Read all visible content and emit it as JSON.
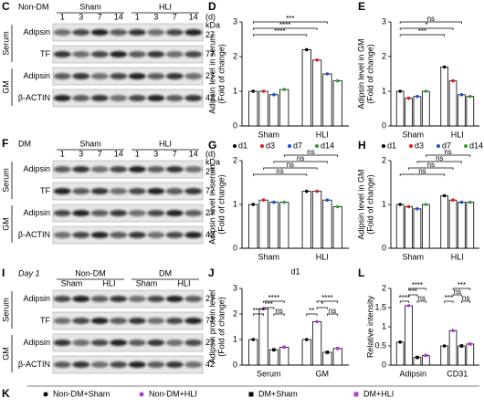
{
  "blots": [
    {
      "label": "C",
      "condition": "Non-DM",
      "groups": [
        "Sham",
        "HLI"
      ],
      "lanes": [
        "1",
        "3",
        "7",
        "14",
        "1",
        "3",
        "7",
        "14"
      ],
      "lane_unit": "(d)",
      "mw_unit": "kDa",
      "rows": [
        {
          "name": "Adipsin",
          "mw": "27"
        },
        {
          "name": "TF",
          "mw": "77"
        },
        {
          "name": "Adipsin",
          "mw": "27"
        },
        {
          "name": "β-ACTIN",
          "mw": "42"
        }
      ],
      "sections": [
        "Serum",
        "GM"
      ]
    },
    {
      "label": "F",
      "condition": "DM",
      "groups": [
        "Sham",
        "HLI"
      ],
      "lanes": [
        "1",
        "3",
        "7",
        "14",
        "1",
        "3",
        "7",
        "14"
      ],
      "lane_unit": "(d)",
      "mw_unit": "kDa",
      "rows": [
        {
          "name": "Adipsin",
          "mw": "27"
        },
        {
          "name": "TF",
          "mw": "77"
        },
        {
          "name": "Adipsin",
          "mw": "27"
        },
        {
          "name": "β-ACTIN",
          "mw": "42"
        }
      ],
      "sections": [
        "Serum",
        "GM"
      ]
    },
    {
      "label": "I",
      "day": "Day 1",
      "groups": [
        "Non-DM",
        "DM"
      ],
      "lanes": [
        "Sham",
        "HLI",
        "Sham",
        "HLI"
      ],
      "rows": [
        {
          "name": "Adipsin",
          "mw": "27"
        },
        {
          "name": "TF",
          "mw": "77"
        },
        {
          "name": "Adipsin",
          "mw": "27"
        },
        {
          "name": "β-ACTIN",
          "mw": "42"
        }
      ],
      "sections": [
        "Serum",
        "GM"
      ]
    }
  ],
  "chart_data": [
    {
      "type": "bar",
      "label": "D",
      "ylabel": [
        "Adipsin level in serum",
        "(Fold of change)"
      ],
      "categories": [
        "Sham",
        "HLI"
      ],
      "series": [
        {
          "color": "#000000",
          "marker": "circle",
          "values": [
            1.0,
            2.2
          ]
        },
        {
          "color": "#e41a1c",
          "marker": "circle",
          "values": [
            1.0,
            1.9
          ]
        },
        {
          "color": "#1f4fd8",
          "marker": "circle",
          "values": [
            0.9,
            1.5
          ]
        },
        {
          "color": "#2ca02c",
          "marker": "circle",
          "values": [
            1.05,
            1.3
          ]
        }
      ],
      "ylim": [
        0,
        3
      ],
      "yticks": [
        0,
        1,
        2,
        3
      ],
      "annotations": [
        "****",
        "****",
        "***"
      ]
    },
    {
      "type": "bar",
      "label": "E",
      "ylabel": [
        "Adipsin level in GM",
        "(Fold of change)"
      ],
      "categories": [
        "Sham",
        "HLI"
      ],
      "series": [
        {
          "color": "#000000",
          "marker": "circle",
          "values": [
            1.0,
            1.7
          ]
        },
        {
          "color": "#e41a1c",
          "marker": "circle",
          "values": [
            0.8,
            1.3
          ]
        },
        {
          "color": "#1f4fd8",
          "marker": "circle",
          "values": [
            0.85,
            0.9
          ]
        },
        {
          "color": "#2ca02c",
          "marker": "circle",
          "values": [
            1.0,
            0.85
          ]
        }
      ],
      "ylim": [
        0,
        3
      ],
      "yticks": [
        0,
        1,
        2,
        3
      ],
      "annotations": [
        "***",
        "*",
        "ns"
      ]
    },
    {
      "type": "bar",
      "label": "G",
      "ylabel": [
        "Adipsin level in serum",
        "(Fold of change)"
      ],
      "categories": [
        "Sham",
        "HLI"
      ],
      "series": [
        {
          "name": "d1",
          "color": "#000000",
          "marker": "circle",
          "values": [
            1.0,
            1.3
          ]
        },
        {
          "name": "d3",
          "color": "#e41a1c",
          "marker": "circle",
          "values": [
            1.1,
            1.3
          ]
        },
        {
          "name": "d7",
          "color": "#1f4fd8",
          "marker": "circle",
          "values": [
            1.05,
            1.1
          ]
        },
        {
          "name": "d14",
          "color": "#2ca02c",
          "marker": "circle",
          "values": [
            1.05,
            0.95
          ]
        }
      ],
      "ylim": [
        0,
        2
      ],
      "yticks": [
        0,
        1,
        2
      ],
      "annotations": [
        "ns",
        "ns",
        "ns",
        "ns"
      ]
    },
    {
      "type": "bar",
      "label": "H",
      "ylabel": [
        "Adipsin level in GM",
        "(Fold of change)"
      ],
      "categories": [
        "Sham",
        "HLI"
      ],
      "series": [
        {
          "name": "d1",
          "color": "#000000",
          "marker": "circle",
          "values": [
            1.0,
            1.2
          ]
        },
        {
          "name": "d3",
          "color": "#e41a1c",
          "marker": "circle",
          "values": [
            0.95,
            1.1
          ]
        },
        {
          "name": "d7",
          "color": "#1f4fd8",
          "marker": "circle",
          "values": [
            0.9,
            1.05
          ]
        },
        {
          "name": "d14",
          "color": "#2ca02c",
          "marker": "circle",
          "values": [
            1.0,
            1.05
          ]
        }
      ],
      "ylim": [
        0,
        2
      ],
      "yticks": [
        0,
        1,
        2
      ],
      "annotations": [
        "ns",
        "ns",
        "ns",
        "ns"
      ]
    },
    {
      "type": "bar",
      "label": "J",
      "title": "d1",
      "ylabel": [
        "Adipsin protein level",
        "(Fold of change)"
      ],
      "categories": [
        "Serum",
        "GM"
      ],
      "series": [
        {
          "name": "Non-DM+Sham",
          "color": "#000000",
          "marker": "circle",
          "values": [
            1.0,
            1.0
          ]
        },
        {
          "name": "Non-DM+HLI",
          "color": "#b03cd8",
          "marker": "circle",
          "values": [
            2.2,
            1.7
          ]
        },
        {
          "name": "DM+Sham",
          "color": "#000000",
          "marker": "square",
          "values": [
            0.6,
            0.5
          ]
        },
        {
          "name": "DM+HLI",
          "color": "#b03cd8",
          "marker": "square",
          "values": [
            0.7,
            0.65
          ]
        }
      ],
      "ylim": [
        0,
        3
      ],
      "yticks": [
        0,
        1,
        2,
        3
      ],
      "annotations": [
        "****",
        "ns",
        "***",
        "****",
        "**",
        "ns",
        "*",
        "****"
      ]
    },
    {
      "type": "bar",
      "label": "L",
      "ylabel": [
        "Relative intensity"
      ],
      "categories": [
        "Adipsin",
        "CD31"
      ],
      "series": [
        {
          "color": "#000000",
          "marker": "circle",
          "values": [
            0.6,
            0.5
          ]
        },
        {
          "color": "#b03cd8",
          "marker": "circle",
          "values": [
            1.55,
            0.9
          ]
        },
        {
          "color": "#000000",
          "marker": "square",
          "values": [
            0.2,
            0.5
          ]
        },
        {
          "color": "#b03cd8",
          "marker": "square",
          "values": [
            0.25,
            0.55
          ]
        }
      ],
      "ylim": [
        0,
        2
      ],
      "yticks": [
        0,
        0.5,
        1,
        1.5,
        2
      ],
      "annotations": [
        "****",
        "ns",
        "***",
        "****",
        "***",
        "ns",
        "ns",
        "***"
      ]
    }
  ],
  "legend_label": "K"
}
